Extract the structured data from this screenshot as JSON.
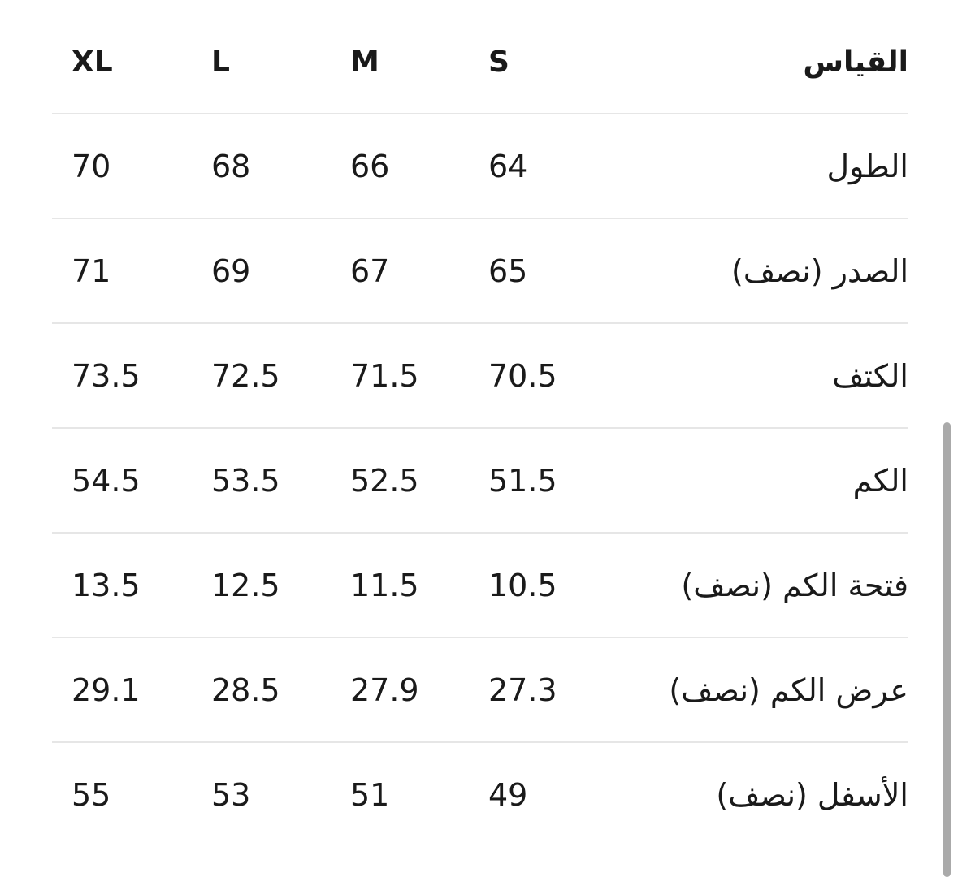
{
  "header": {
    "label": "القياس",
    "sizes": [
      "S",
      "M",
      "L",
      "XL"
    ]
  },
  "rows": [
    {
      "label": "الطول",
      "S": "64",
      "M": "66",
      "L": "68",
      "XL": "70"
    },
    {
      "label": "الصدر (نصف)",
      "S": "65",
      "M": "67",
      "L": "69",
      "XL": "71"
    },
    {
      "label": "الكتف",
      "S": "70.5",
      "M": "71.5",
      "L": "72.5",
      "XL": "73.5"
    },
    {
      "label": "الكم",
      "S": "51.5",
      "M": "52.5",
      "L": "53.5",
      "XL": "54.5"
    },
    {
      "label": "فتحة الكم (نصف)",
      "S": "10.5",
      "M": "11.5",
      "L": "12.5",
      "XL": "13.5"
    },
    {
      "label": "عرض الكم (نصف)",
      "S": "27.3",
      "M": "27.9",
      "L": "28.5",
      "XL": "29.1"
    },
    {
      "label": "الأسفل (نصف)",
      "S": "49",
      "M": "51",
      "L": "53",
      "XL": "55"
    }
  ]
}
